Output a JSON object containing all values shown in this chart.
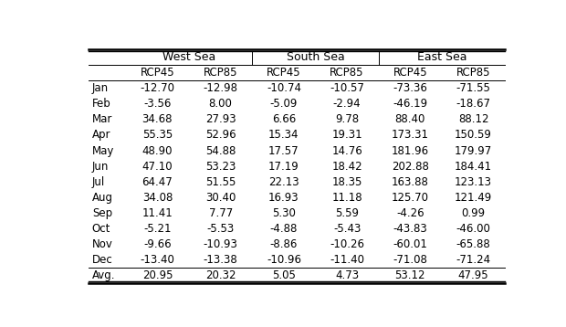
{
  "group_headers": [
    "West Sea",
    "South Sea",
    "East Sea"
  ],
  "sub_headers": [
    "RCP45",
    "RCP85",
    "RCP45",
    "RCP85",
    "RCP45",
    "RCP85"
  ],
  "row_labels": [
    "Jan",
    "Feb",
    "Mar",
    "Apr",
    "May",
    "Jun",
    "Jul",
    "Aug",
    "Sep",
    "Oct",
    "Nov",
    "Dec",
    "Avg."
  ],
  "data": [
    [
      "-12.70",
      "-12.98",
      "-10.74",
      "-10.57",
      "-73.36",
      "-71.55"
    ],
    [
      "-3.56",
      "8.00",
      "-5.09",
      "-2.94",
      "-46.19",
      "-18.67"
    ],
    [
      "34.68",
      "27.93",
      "6.66",
      "9.78",
      "88.40",
      "88.12"
    ],
    [
      "55.35",
      "52.96",
      "15.34",
      "19.31",
      "173.31",
      "150.59"
    ],
    [
      "48.90",
      "54.88",
      "17.57",
      "14.76",
      "181.96",
      "179.97"
    ],
    [
      "47.10",
      "53.23",
      "17.19",
      "18.42",
      "202.88",
      "184.41"
    ],
    [
      "64.47",
      "51.55",
      "22.13",
      "18.35",
      "163.88",
      "123.13"
    ],
    [
      "34.08",
      "30.40",
      "16.93",
      "11.18",
      "125.70",
      "121.49"
    ],
    [
      "11.41",
      "7.77",
      "5.30",
      "5.59",
      "-4.26",
      "0.99"
    ],
    [
      "-5.21",
      "-5.53",
      "-4.88",
      "-5.43",
      "-43.83",
      "-46.00"
    ],
    [
      "-9.66",
      "-10.93",
      "-8.86",
      "-10.26",
      "-60.01",
      "-65.88"
    ],
    [
      "-13.40",
      "-13.38",
      "-10.96",
      "-11.40",
      "-71.08",
      "-71.24"
    ],
    [
      "20.95",
      "20.32",
      "5.05",
      "4.73",
      "53.12",
      "47.95"
    ]
  ],
  "avg_row_idx": 12,
  "font_size_data": 8.5,
  "font_size_header": 8.5,
  "font_size_group": 9.0
}
